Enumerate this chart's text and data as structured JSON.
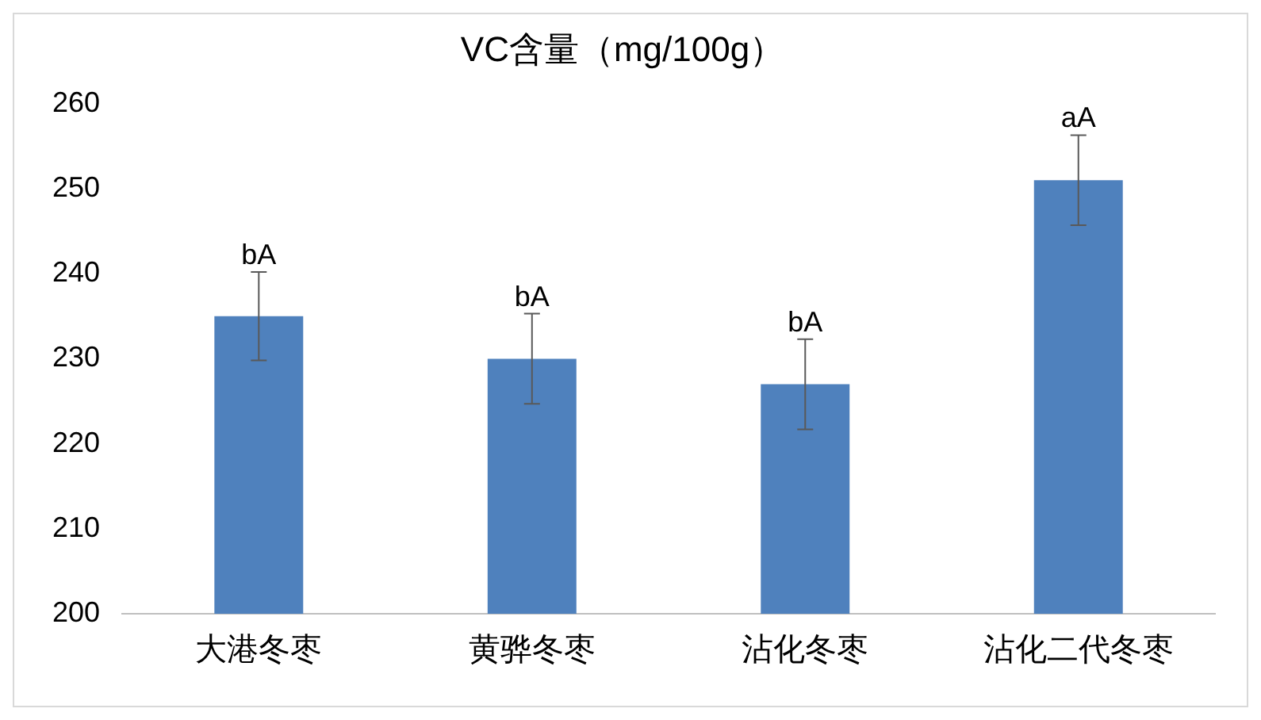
{
  "chart_data": {
    "type": "bar",
    "title": "VC含量（mg/100g）",
    "categories": [
      "大港冬枣",
      "黄骅冬枣",
      "沾化冬枣",
      "沾化二代冬枣"
    ],
    "values": [
      235,
      230,
      227,
      251
    ],
    "errors": [
      5.2,
      5.3,
      5.3,
      5.3
    ],
    "color": "#4f81bd",
    "ylim": [
      200,
      260
    ],
    "yticks": [
      200,
      210,
      220,
      230,
      240,
      250,
      260
    ],
    "grid": false,
    "legend": false,
    "annotations": [
      {
        "text": "bA",
        "x": "大港冬枣",
        "y": 240.2
      },
      {
        "text": "bA",
        "x": "黄骅冬枣",
        "y": 235.3
      },
      {
        "text": "bA",
        "x": "沾化冬枣",
        "y": 232.3
      },
      {
        "text": "aA",
        "x": "沾化二代冬枣",
        "y": 256.3
      }
    ]
  }
}
